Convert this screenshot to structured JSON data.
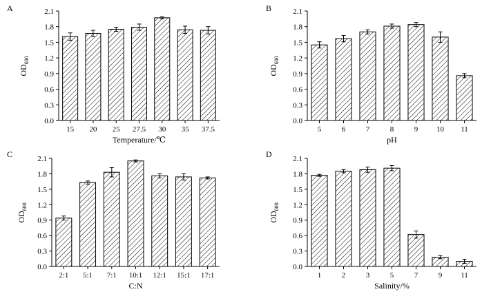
{
  "chart_data": [
    {
      "type": "bar",
      "panel_label": "A",
      "categories": [
        "15",
        "20",
        "25",
        "27.5",
        "30",
        "35",
        "37.5"
      ],
      "values": [
        1.61,
        1.67,
        1.75,
        1.79,
        1.97,
        1.74,
        1.73
      ],
      "errors": [
        0.07,
        0.06,
        0.04,
        0.06,
        0.02,
        0.07,
        0.07
      ],
      "xlabel": "Temperature/℃",
      "ylabel_main": "OD",
      "ylabel_sub": "600",
      "ylim": [
        0,
        2.1
      ],
      "yticks": [
        "0.0",
        "0.3",
        "0.6",
        "0.9",
        "1.2",
        "1.5",
        "1.8",
        "2.1"
      ]
    },
    {
      "type": "bar",
      "panel_label": "B",
      "categories": [
        "5",
        "6",
        "7",
        "8",
        "9",
        "10",
        "11"
      ],
      "values": [
        1.45,
        1.57,
        1.7,
        1.81,
        1.84,
        1.6,
        0.86
      ],
      "errors": [
        0.06,
        0.06,
        0.04,
        0.04,
        0.04,
        0.1,
        0.04
      ],
      "xlabel": "pH",
      "ylabel_main": "OD",
      "ylabel_sub": "600",
      "ylim": [
        0,
        2.1
      ],
      "yticks": [
        "0.0",
        "0.3",
        "0.6",
        "0.9",
        "1.2",
        "1.5",
        "1.8",
        "2.1"
      ]
    },
    {
      "type": "bar",
      "panel_label": "C",
      "categories": [
        "2:1",
        "5:1",
        "7:1",
        "10:1",
        "12:1",
        "15:1",
        "17:1"
      ],
      "values": [
        0.94,
        1.63,
        1.83,
        2.05,
        1.76,
        1.74,
        1.72
      ],
      "errors": [
        0.04,
        0.03,
        0.09,
        0.02,
        0.04,
        0.06,
        0.02
      ],
      "xlabel": "C:N",
      "ylabel_main": "OD",
      "ylabel_sub": "600",
      "ylim": [
        0,
        2.1
      ],
      "yticks": [
        "0.0",
        "0.3",
        "0.6",
        "0.9",
        "1.2",
        "1.5",
        "1.8",
        "2.1"
      ]
    },
    {
      "type": "bar",
      "panel_label": "D",
      "categories": [
        "1",
        "2",
        "3",
        "5",
        "7",
        "9",
        "11"
      ],
      "values": [
        1.77,
        1.85,
        1.88,
        1.91,
        0.62,
        0.18,
        0.1
      ],
      "errors": [
        0.02,
        0.03,
        0.05,
        0.05,
        0.07,
        0.03,
        0.04
      ],
      "xlabel": "Salinity/%",
      "ylabel_main": "OD",
      "ylabel_sub": "600",
      "ylim": [
        0,
        2.1
      ],
      "yticks": [
        "0.0",
        "0.3",
        "0.6",
        "0.9",
        "1.2",
        "1.5",
        "1.8",
        "2.1"
      ]
    }
  ]
}
